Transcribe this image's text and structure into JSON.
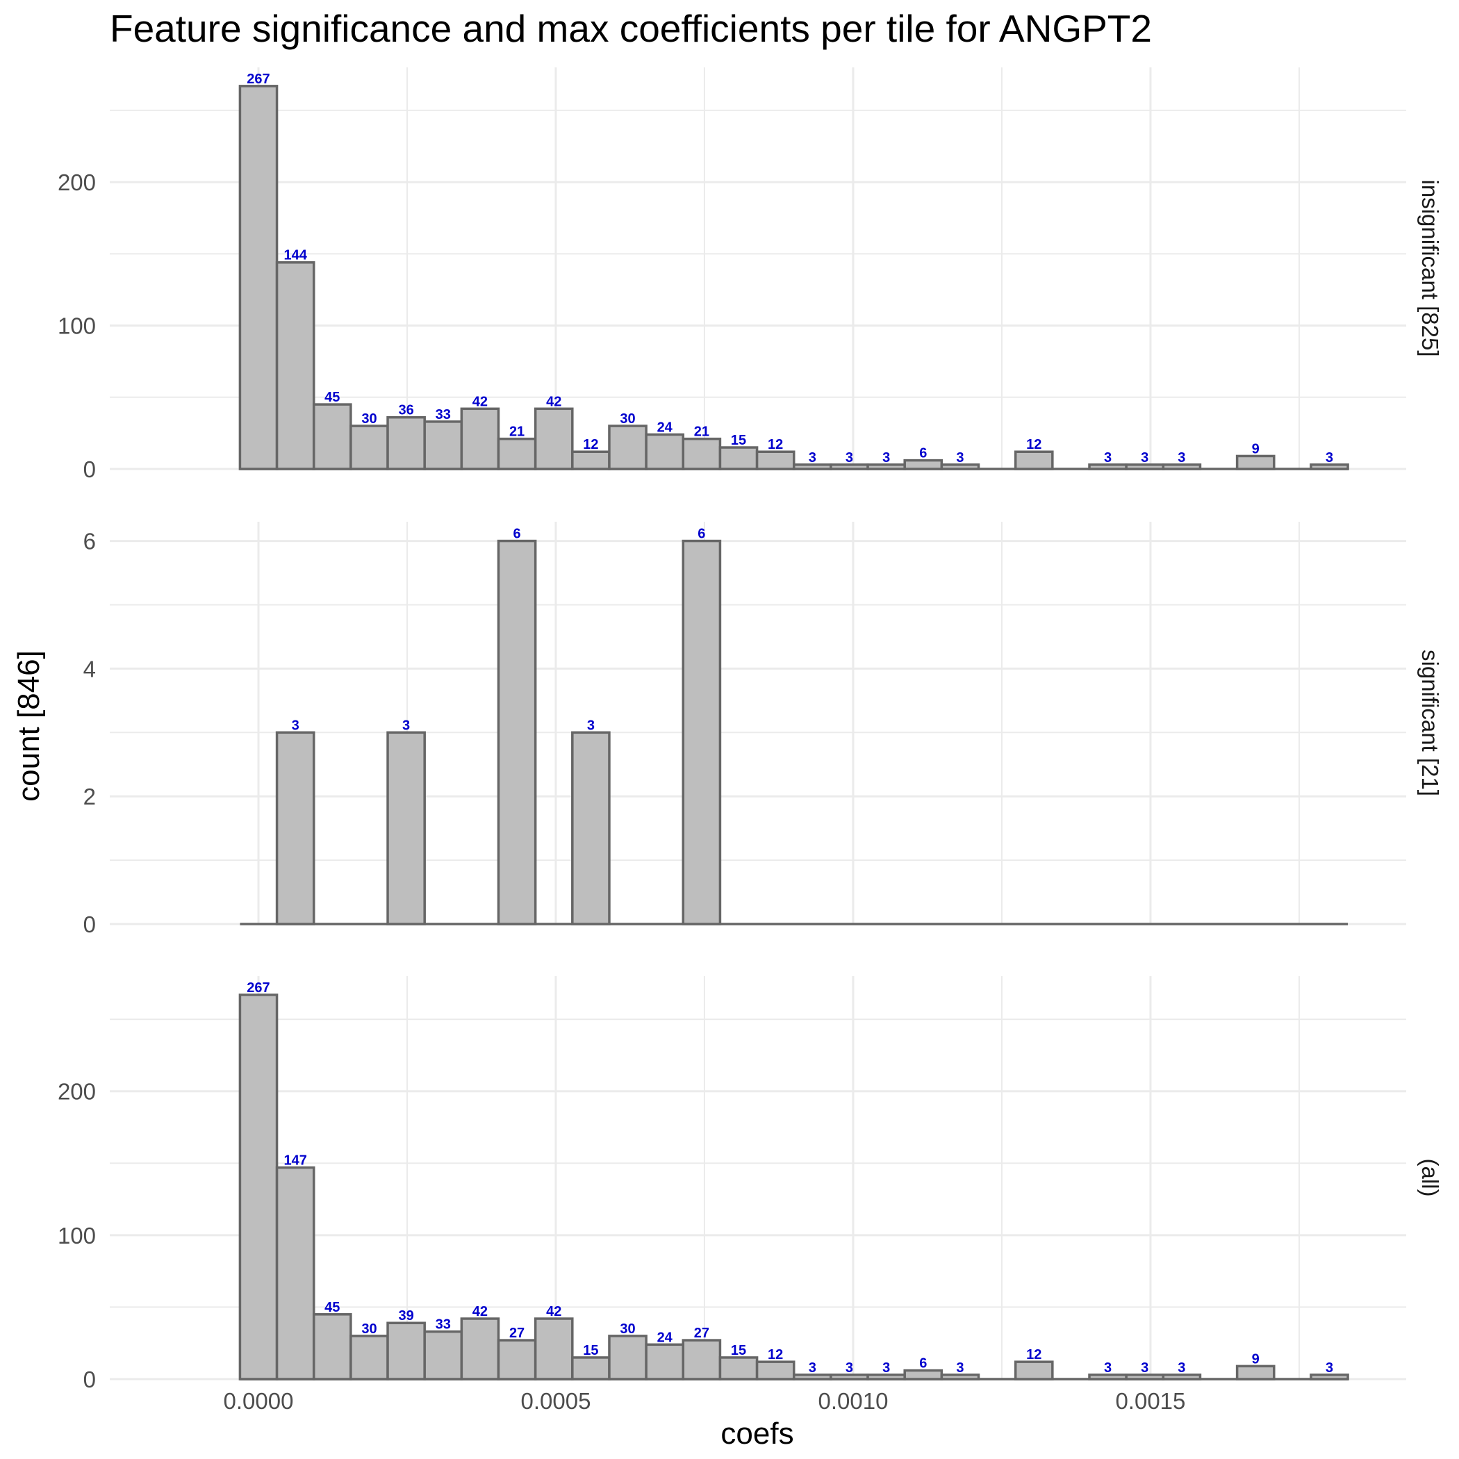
{
  "chart_data": {
    "type": "bar",
    "title": "Feature significance and max coefficients per tile for ANGPT2",
    "xlabel": "coefs",
    "ylabel": "count [846]",
    "x_ticks": [
      "0.0000",
      "0.0005",
      "0.0010",
      "0.0015"
    ],
    "x_tick_values": [
      0,
      0.0005,
      0.001,
      0.0015
    ],
    "xlim": [
      -0.00025,
      0.00193
    ],
    "bins": 30,
    "bin_width": 6.21e-05,
    "bin_centers": [
      0,
      6.21e-05,
      0.0001242,
      0.0001863,
      0.0002484,
      0.0003105,
      0.0003726,
      0.0004347,
      0.0004968,
      0.0005589,
      0.000621,
      0.0006831,
      0.0007452,
      0.0008073,
      0.0008694,
      0.0009315,
      0.0009936,
      0.0010557,
      0.0011178,
      0.0011799,
      0.001242,
      0.0013041,
      0.0013662,
      0.0014283,
      0.0014904,
      0.0015525,
      0.0016146,
      0.0016767,
      0.0017388,
      0.0018009
    ],
    "grid": true,
    "facets": [
      {
        "strip": "insignificant [825]",
        "ylim": [
          0,
          280
        ],
        "y_ticks": [
          "0",
          "100",
          "200"
        ],
        "y_tick_values": [
          0,
          100,
          200
        ],
        "values": [
          267,
          144,
          45,
          30,
          36,
          33,
          42,
          21,
          42,
          12,
          30,
          24,
          21,
          15,
          12,
          3,
          3,
          3,
          6,
          3,
          0,
          12,
          0,
          3,
          3,
          3,
          0,
          9,
          0,
          3
        ],
        "labels": [
          "267",
          "144",
          "45",
          "30",
          "36",
          "33",
          "42",
          "21",
          "42",
          "12",
          "30",
          "24",
          "21",
          "15",
          "12",
          "3",
          "3",
          "3",
          "6",
          "3",
          "",
          "12",
          "",
          "3",
          "3",
          "3",
          "",
          "9",
          "",
          "3"
        ]
      },
      {
        "strip": "significant [21]",
        "ylim": [
          0,
          6.3
        ],
        "y_ticks": [
          "0",
          "2",
          "4",
          "6"
        ],
        "y_tick_values": [
          0,
          2,
          4,
          6
        ],
        "values": [
          0,
          3,
          0,
          0,
          3,
          0,
          0,
          6,
          0,
          3,
          0,
          0,
          6,
          0,
          0,
          0,
          0,
          0,
          0,
          0,
          0,
          0,
          0,
          0,
          0,
          0,
          0,
          0,
          0,
          0
        ],
        "labels": [
          "",
          "3",
          "",
          "",
          "3",
          "",
          "",
          "6",
          "",
          "3",
          "",
          "",
          "6",
          "",
          "",
          "",
          "",
          "",
          "",
          "",
          "",
          "",
          "",
          "",
          "",
          "",
          "",
          "",
          "",
          ""
        ]
      },
      {
        "strip": "(all)",
        "ylim": [
          0,
          280
        ],
        "y_ticks": [
          "0",
          "100",
          "200"
        ],
        "y_tick_values": [
          0,
          100,
          200
        ],
        "values": [
          267,
          147,
          45,
          30,
          39,
          33,
          42,
          27,
          42,
          15,
          30,
          24,
          27,
          15,
          12,
          3,
          3,
          3,
          6,
          3,
          0,
          12,
          0,
          3,
          3,
          3,
          0,
          9,
          0,
          3
        ],
        "labels": [
          "267",
          "147",
          "45",
          "30",
          "39",
          "33",
          "42",
          "27",
          "42",
          "15",
          "30",
          "24",
          "27",
          "15",
          "12",
          "3",
          "3",
          "3",
          "6",
          "3",
          "",
          "12",
          "",
          "3",
          "3",
          "3",
          "",
          "9",
          "",
          "3"
        ]
      }
    ],
    "colors": {
      "bar_fill": "#bebebe",
      "bar_outline": "#666666",
      "count_label": "#0000cd",
      "grid": "#ebebeb"
    }
  }
}
